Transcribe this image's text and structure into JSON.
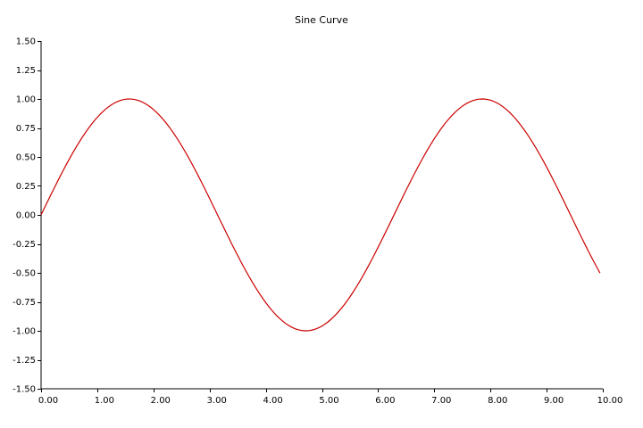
{
  "colors": {
    "background": "#ffffff",
    "axis": "#000000",
    "line": "#cc0000"
  },
  "chart_data": {
    "type": "line",
    "title": "Sine Curve",
    "xlabel": "",
    "ylabel": "",
    "xlim": [
      0,
      10
    ],
    "ylim": [
      -1.5,
      1.5
    ],
    "grid": false,
    "legend": "none",
    "x_ticks": [
      "0.00",
      "1.00",
      "2.00",
      "3.00",
      "4.00",
      "5.00",
      "6.00",
      "7.00",
      "8.00",
      "9.00",
      "10.00"
    ],
    "y_ticks": [
      "1.50",
      "1.25",
      "1.00",
      "0.75",
      "0.50",
      "0.25",
      "0.00",
      "-0.25",
      "-0.50",
      "-0.75",
      "-1.00",
      "-1.25",
      "-1.50"
    ],
    "series": [
      {
        "function": "sin(x)",
        "x_start": 0,
        "x_end": 9.95,
        "x_step": 0.05,
        "color": "#cc0000"
      }
    ]
  }
}
